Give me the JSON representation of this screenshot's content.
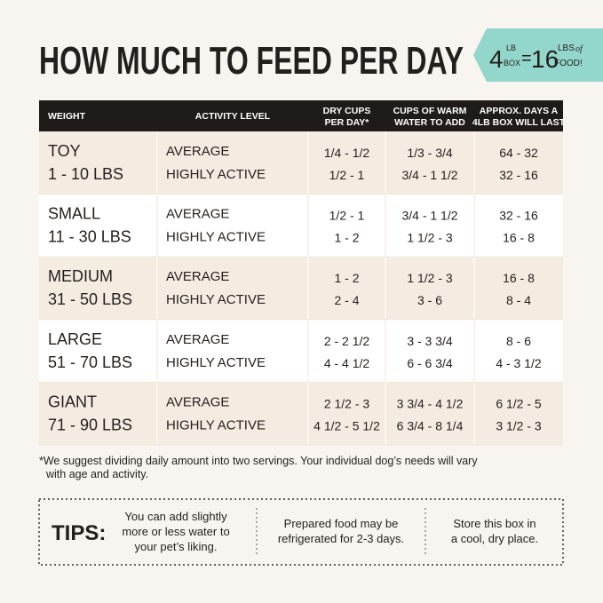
{
  "header": {
    "title": "HOW MUCH TO FEED PER DAY",
    "banner": {
      "box_weight": "4",
      "box_unit_top": "LB",
      "box_unit_bottom": "BOX",
      "equals": "=",
      "food_weight": "16",
      "food_unit_top": "LBS",
      "food_unit_of": "of",
      "food_unit_bottom": "FOOD!"
    }
  },
  "table": {
    "headers": [
      [
        "WEIGHT"
      ],
      [
        "ACTIVITY LEVEL"
      ],
      [
        "DRY CUPS",
        "PER DAY*"
      ],
      [
        "CUPS OF WARM",
        "WATER TO ADD"
      ],
      [
        "APPROX. DAYS A",
        "4LB BOX WILL LAST"
      ]
    ],
    "rows": [
      [
        "TOY",
        "1 - 10 LBS",
        "AVERAGE",
        "HIGHLY ACTIVE",
        "1/4 - 1/2",
        "1/2 - 1",
        "1/3 - 3/4",
        "3/4 - 1 1/2",
        "64 - 32",
        "32 - 16"
      ],
      [
        "SMALL",
        "11 - 30 LBS",
        "AVERAGE",
        "HIGHLY ACTIVE",
        "1/2 - 1",
        "1 - 2",
        "3/4 - 1 1/2",
        "1 1/2 - 3",
        "32 - 16",
        "16 - 8"
      ],
      [
        "MEDIUM",
        "31 - 50 LBS",
        "AVERAGE",
        "HIGHLY ACTIVE",
        "1 - 2",
        "2 - 4",
        "1 1/2 - 3",
        "3 - 6",
        "16 - 8",
        "8 - 4"
      ],
      [
        "LARGE",
        "51 - 70 LBS",
        "AVERAGE",
        "HIGHLY ACTIVE",
        "2 - 2 1/2",
        "4 - 4 1/2",
        "3 - 3 3/4",
        "6 - 6 3/4",
        "8 - 6",
        "4 - 3 1/2"
      ],
      [
        "GIANT",
        "71 - 90 LBS",
        "AVERAGE",
        "HIGHLY ACTIVE",
        "2 1/2 - 3",
        "4 1/2 - 5 1/2",
        "3 3/4 - 4 1/2",
        "6 3/4 - 8 1/4",
        "6 1/2 - 5",
        "3 1/2 - 3"
      ]
    ]
  },
  "footnote": [
    "*We suggest dividing daily amount into two servings. Your individual dog’s needs will vary",
    "with age and activity."
  ],
  "tips": {
    "label": "TIPS:",
    "items": [
      [
        "You can add slightly",
        "more or less water to",
        "your pet’s liking."
      ],
      [
        "Prepared food may be",
        "refrigerated for 2-3 days."
      ],
      [
        "Store this box in",
        "a cool, dry place."
      ]
    ]
  }
}
